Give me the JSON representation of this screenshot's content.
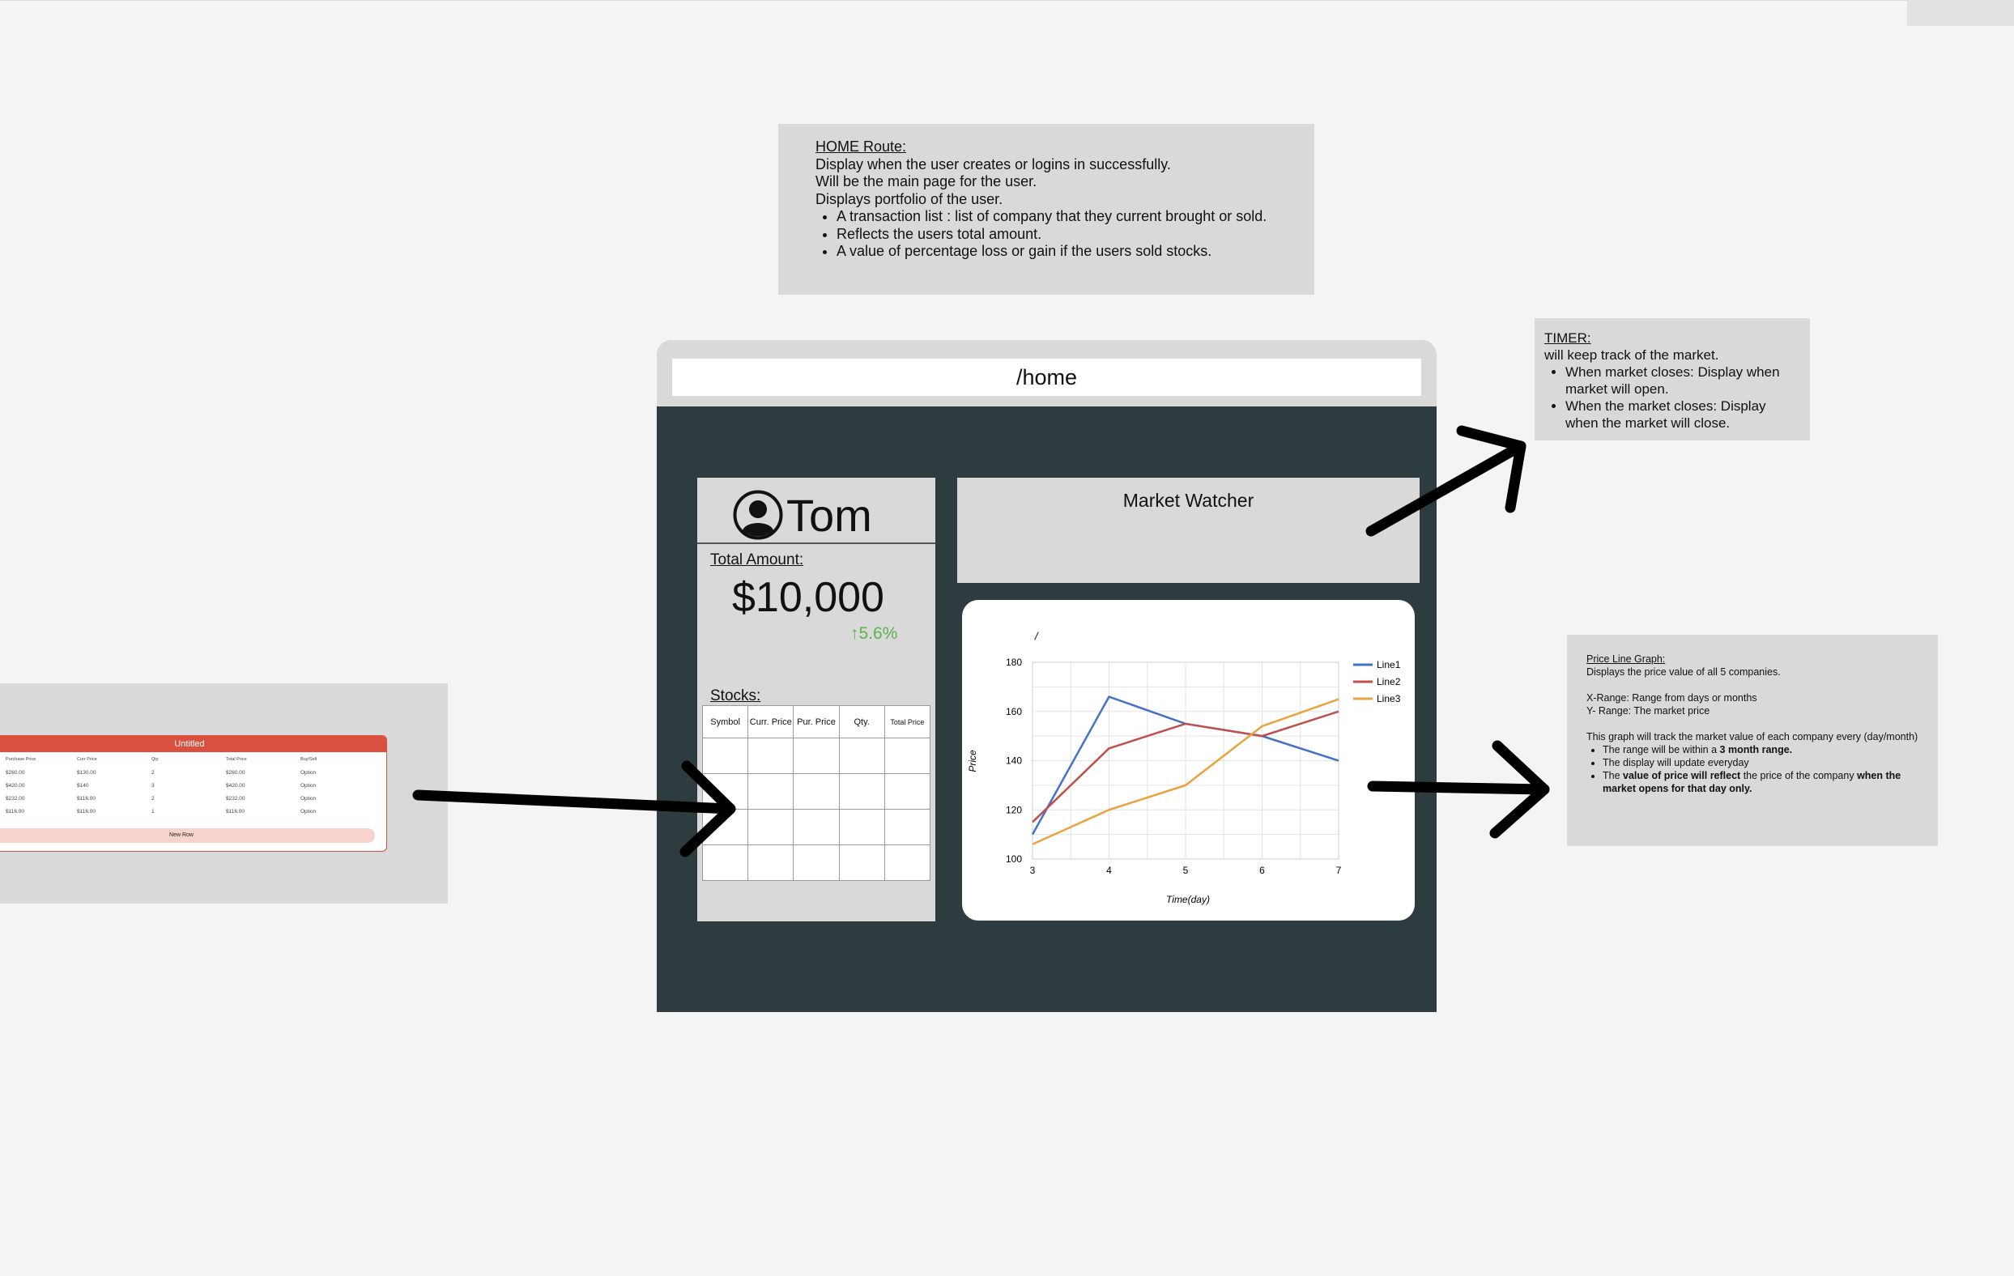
{
  "notes": {
    "home": {
      "heading": "HOME Route:",
      "lines": [
        "Display when the user creates or logins in successfully.",
        "Will be the main page for the user.",
        "Displays portfolio of the user."
      ],
      "bullets": [
        "A transaction list : list of company that they current brought or sold.",
        "Reflects the users total amount.",
        "A value of percentage loss or gain if the users sold stocks."
      ]
    },
    "timer": {
      "heading": "TIMER:",
      "line": "will keep track of the market.",
      "bullets": [
        "When market closes: Display when market will open.",
        "When the market closes: Display when the market will close."
      ]
    },
    "graph": {
      "heading": "Price Line Graph:",
      "line1": "Displays the price value of all 5 companies.",
      "xrange": "X-Range: Range from days or months",
      "yrange": "Y- Range: The market price",
      "desc": "This graph will track the market value of each company every (day/month)",
      "b1_pre": "The range will be within a ",
      "b1_bold": "3 month range.",
      "b2": "The display will update everyday",
      "b3_pre": "The ",
      "b3_bold1": "value of price will reflect",
      "b3_mid": " the price of the company ",
      "b3_bold2": "when the market opens for that day only."
    }
  },
  "untitled": {
    "title": "Untitled",
    "headers": [
      "Purchase Price",
      "Curr Price",
      "Qty",
      "Total Price",
      "Buy/Sell"
    ],
    "rows": [
      [
        "$260.00",
        "$130.00",
        "2",
        "$260.00",
        "Option"
      ],
      [
        "$420.00",
        "$140",
        "3",
        "$420.00",
        "Option"
      ],
      [
        "$232.00",
        "$116.00",
        "2",
        "$232.00",
        "Option"
      ],
      [
        "$116.00",
        "$116.00",
        "1",
        "$116.00",
        "Option"
      ]
    ],
    "new_row": "New Row"
  },
  "browser": {
    "url": "/home"
  },
  "profile": {
    "name": "Tom",
    "total_label": "Total Amount:",
    "total_amount": "$10,000",
    "change": "↑5.6%",
    "stocks_label": "Stocks:",
    "stock_headers": [
      "Symbol",
      "Curr. Price",
      "Pur. Price",
      "Qty.",
      "Total Price"
    ]
  },
  "market": {
    "title": "Market Watcher"
  },
  "chart_data": {
    "type": "line",
    "title": "/",
    "xlabel": "Time(day)",
    "ylabel": "Price",
    "x": [
      3,
      4,
      5,
      6,
      7
    ],
    "xlim": [
      3,
      7
    ],
    "ylim": [
      100,
      180
    ],
    "yticks": [
      100,
      120,
      140,
      160,
      180
    ],
    "grid": true,
    "legend": "right",
    "series": [
      {
        "name": "Line1",
        "color": "#4472c4",
        "values": [
          110,
          166,
          155,
          150,
          140
        ]
      },
      {
        "name": "Line2",
        "color": "#c0504d",
        "values": [
          115,
          145,
          155,
          150,
          160
        ]
      },
      {
        "name": "Line3",
        "color": "#e8a33d",
        "values": [
          106,
          120,
          130,
          154,
          165
        ]
      }
    ]
  },
  "colors": {
    "app_bg": "#2e3c3f",
    "panel": "#d9d9d9",
    "accent": "#d9503f",
    "gain": "#5fb350"
  }
}
